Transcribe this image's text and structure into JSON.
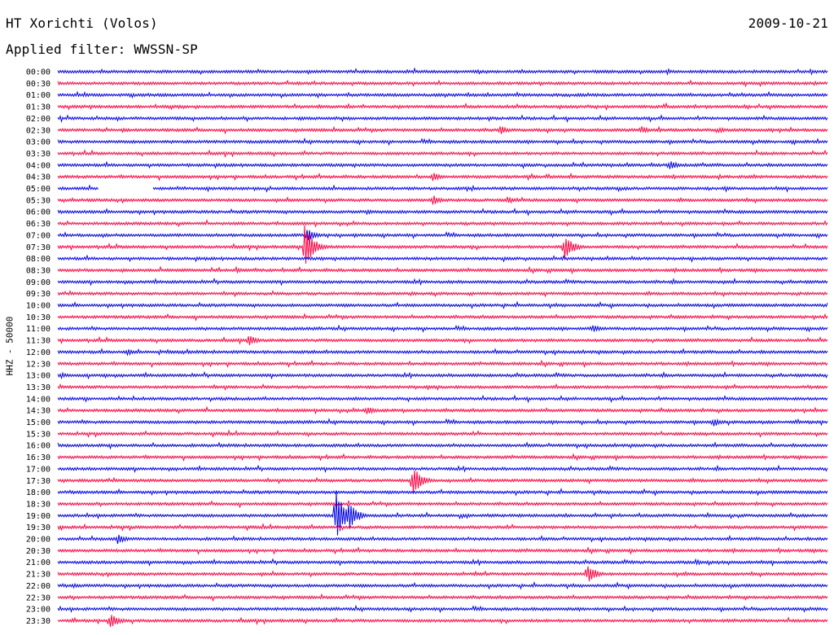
{
  "header": {
    "station": "HT Xorichti (Volos)",
    "date": "2009-10-21",
    "filter": "Applied filter: WWSSN-SP"
  },
  "axis": {
    "channel_label": "HHZ - 50000"
  },
  "colors": {
    "blue": "#0000e6",
    "red": "#ff0040"
  },
  "chart_data": {
    "type": "line",
    "title": "",
    "ylabel": "HHZ - 50000",
    "row_labels": [
      "00:00",
      "00:30",
      "01:00",
      "01:30",
      "02:00",
      "02:30",
      "03:00",
      "03:30",
      "04:00",
      "04:30",
      "05:00",
      "05:30",
      "06:00",
      "06:30",
      "07:00",
      "07:30",
      "08:00",
      "08:30",
      "09:00",
      "09:30",
      "10:00",
      "10:30",
      "11:00",
      "11:30",
      "12:00",
      "12:30",
      "13:00",
      "13:30",
      "14:00",
      "14:30",
      "15:00",
      "15:30",
      "16:00",
      "16:30",
      "17:00",
      "17:30",
      "18:00",
      "18:30",
      "19:00",
      "19:30",
      "20:00",
      "20:30",
      "21:00",
      "21:30",
      "22:00",
      "22:30",
      "23:00",
      "23:30"
    ],
    "row_colors": [
      "blue",
      "red"
    ],
    "events": [
      {
        "row": "00:30",
        "minute": 29.4,
        "amplitude": 0.4
      },
      {
        "row": "02:30",
        "minute": 2.5,
        "amplitude": 0.5
      },
      {
        "row": "02:30",
        "minute": 17.2,
        "amplitude": 0.9
      },
      {
        "row": "02:30",
        "minute": 22.7,
        "amplitude": 0.8
      },
      {
        "row": "02:30",
        "minute": 25.7,
        "amplitude": 0.6
      },
      {
        "row": "04:00",
        "minute": 23.8,
        "amplitude": 1.0
      },
      {
        "row": "04:30",
        "minute": 14.6,
        "amplitude": 0.9
      },
      {
        "row": "05:30",
        "minute": 14.6,
        "amplitude": 0.9
      },
      {
        "row": "05:30",
        "minute": 17.5,
        "amplitude": 0.7
      },
      {
        "row": "06:00",
        "minute": 12.0,
        "amplitude": 0.5
      },
      {
        "row": "07:00",
        "minute": 9.7,
        "amplitude": 1.2
      },
      {
        "row": "07:30",
        "minute": 9.6,
        "amplitude": 4.5
      },
      {
        "row": "07:30",
        "minute": 19.7,
        "amplitude": 2.7
      },
      {
        "row": "08:30",
        "minute": 6.9,
        "amplitude": 0.6
      },
      {
        "row": "09:30",
        "minute": 13.7,
        "amplitude": 0.5
      },
      {
        "row": "11:00",
        "minute": 20.8,
        "amplitude": 0.8
      },
      {
        "row": "11:30",
        "minute": 7.4,
        "amplitude": 1.1
      },
      {
        "row": "12:00",
        "minute": 2.7,
        "amplitude": 0.6
      },
      {
        "row": "13:00",
        "minute": 0.1,
        "amplitude": 0.6
      },
      {
        "row": "14:30",
        "minute": 12.0,
        "amplitude": 0.9
      },
      {
        "row": "15:00",
        "minute": 25.5,
        "amplitude": 0.9
      },
      {
        "row": "17:30",
        "minute": 13.8,
        "amplitude": 3.0
      },
      {
        "row": "19:00",
        "minute": 10.8,
        "amplitude": 5.0
      },
      {
        "row": "19:00",
        "minute": 11.3,
        "amplitude": 3.0
      },
      {
        "row": "20:00",
        "minute": 2.3,
        "amplitude": 1.0
      },
      {
        "row": "21:00",
        "minute": 24.8,
        "amplitude": 0.6
      },
      {
        "row": "21:30",
        "minute": 20.6,
        "amplitude": 2.0
      },
      {
        "row": "22:00",
        "minute": 0.6,
        "amplitude": 0.5
      },
      {
        "row": "23:30",
        "minute": 2.0,
        "amplitude": 1.7
      }
    ],
    "gaps": [
      {
        "row": "05:00",
        "start_minute": 1.6,
        "end_minute": 3.7
      }
    ]
  }
}
